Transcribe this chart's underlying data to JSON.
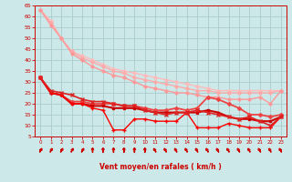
{
  "title": "",
  "xlabel": "Vent moyen/en rafales ( km/h )",
  "xlim": [
    -0.5,
    23.5
  ],
  "ylim": [
    5,
    65
  ],
  "yticks": [
    5,
    10,
    15,
    20,
    25,
    30,
    35,
    40,
    45,
    50,
    55,
    60,
    65
  ],
  "xticks": [
    0,
    1,
    2,
    3,
    4,
    5,
    6,
    7,
    8,
    9,
    10,
    11,
    12,
    13,
    14,
    15,
    16,
    17,
    18,
    19,
    20,
    21,
    22,
    23
  ],
  "bg_color": "#cce8e8",
  "grid_color": "#aacccc",
  "lines": [
    {
      "x": [
        0,
        1,
        2,
        3,
        4,
        5,
        6,
        7,
        8,
        9,
        10,
        11,
        12,
        13,
        14,
        15,
        16,
        17,
        18,
        19,
        20,
        21,
        22,
        23
      ],
      "y": [
        63,
        58,
        50,
        44,
        42,
        40,
        38,
        36,
        35,
        34,
        33,
        32,
        31,
        30,
        29,
        28,
        27,
        26,
        26,
        26,
        26,
        26,
        26,
        26
      ],
      "color": "#ffbbbb",
      "lw": 1.0,
      "marker": "D",
      "ms": 1.8
    },
    {
      "x": [
        0,
        1,
        2,
        3,
        4,
        5,
        6,
        7,
        8,
        9,
        10,
        11,
        12,
        13,
        14,
        15,
        16,
        17,
        18,
        19,
        20,
        21,
        22,
        23
      ],
      "y": [
        63,
        57,
        50,
        44,
        41,
        39,
        37,
        35,
        34,
        32,
        31,
        30,
        29,
        28,
        27,
        26,
        26,
        25,
        25,
        25,
        25,
        25,
        25,
        26
      ],
      "color": "#ffaaaa",
      "lw": 1.0,
      "marker": "D",
      "ms": 1.8
    },
    {
      "x": [
        0,
        1,
        2,
        3,
        4,
        5,
        6,
        7,
        8,
        9,
        10,
        11,
        12,
        13,
        14,
        15,
        16,
        17,
        18,
        19,
        20,
        21,
        22,
        23
      ],
      "y": [
        63,
        56,
        50,
        43,
        40,
        37,
        35,
        33,
        32,
        30,
        28,
        27,
        26,
        25,
        25,
        24,
        23,
        23,
        22,
        22,
        22,
        23,
        20,
        26
      ],
      "color": "#ff9999",
      "lw": 1.0,
      "marker": "D",
      "ms": 1.8
    },
    {
      "x": [
        0,
        1,
        2,
        3,
        4,
        5,
        6,
        7,
        8,
        9,
        10,
        11,
        12,
        13,
        14,
        15,
        16,
        17,
        18,
        19,
        20,
        21,
        22,
        23
      ],
      "y": [
        32,
        25,
        24,
        21,
        21,
        20,
        20,
        20,
        19,
        19,
        18,
        17,
        17,
        18,
        17,
        18,
        23,
        22,
        20,
        18,
        15,
        15,
        14,
        15
      ],
      "color": "#ee4444",
      "lw": 1.3,
      "marker": "D",
      "ms": 2.0
    },
    {
      "x": [
        0,
        1,
        2,
        3,
        4,
        5,
        6,
        7,
        8,
        9,
        10,
        11,
        12,
        13,
        14,
        15,
        16,
        17,
        18,
        19,
        20,
        21,
        22,
        23
      ],
      "y": [
        32,
        25,
        24,
        20,
        20,
        19,
        19,
        18,
        18,
        18,
        17,
        16,
        16,
        16,
        16,
        16,
        17,
        16,
        14,
        13,
        13,
        12,
        12,
        14
      ],
      "color": "#cc0000",
      "lw": 1.5,
      "marker": "s",
      "ms": 2.0
    },
    {
      "x": [
        0,
        1,
        2,
        3,
        4,
        5,
        6,
        7,
        8,
        9,
        10,
        11,
        12,
        13,
        14,
        15,
        16,
        17,
        18,
        19,
        20,
        21,
        22,
        23
      ],
      "y": [
        32,
        25,
        24,
        20,
        20,
        18,
        17,
        8,
        8,
        13,
        13,
        12,
        12,
        12,
        16,
        9,
        9,
        9,
        11,
        10,
        9,
        9,
        9,
        14
      ],
      "color": "#ff0000",
      "lw": 1.0,
      "marker": "+",
      "ms": 3.0
    },
    {
      "x": [
        0,
        1,
        2,
        3,
        4,
        5,
        6,
        7,
        8,
        9,
        10,
        11,
        12,
        13,
        14,
        15,
        16,
        17,
        18,
        19,
        20,
        21,
        22,
        23
      ],
      "y": [
        32,
        26,
        25,
        24,
        22,
        21,
        21,
        20,
        19,
        19,
        17,
        16,
        15,
        16,
        16,
        17,
        16,
        15,
        14,
        13,
        14,
        12,
        10,
        14
      ],
      "color": "#dd2222",
      "lw": 1.2,
      "marker": "x",
      "ms": 2.5
    }
  ],
  "arrows": {
    "angles_deg": [
      45,
      45,
      45,
      45,
      45,
      90,
      90,
      90,
      90,
      90,
      90,
      135,
      135,
      135,
      135,
      135,
      135,
      135,
      135,
      135,
      135,
      135,
      135,
      135
    ]
  },
  "arrow_color": "#cc0000"
}
